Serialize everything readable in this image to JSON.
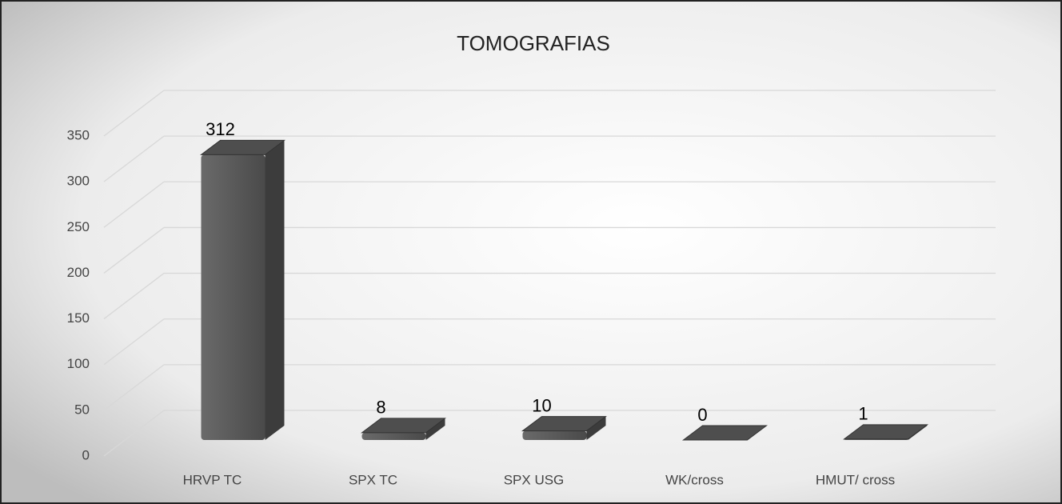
{
  "chart_data": {
    "type": "bar",
    "title": "TOMOGRAFIAS",
    "categories": [
      "HRVP TC",
      "SPX TC",
      "SPX USG",
      "WK/cross",
      "HMUT/ cross"
    ],
    "values": [
      312,
      8,
      10,
      0,
      1
    ],
    "color": "#5a5a5a",
    "ylim": [
      0,
      350
    ],
    "yticks": [
      0,
      50,
      100,
      150,
      200,
      250,
      300,
      350
    ],
    "grid": true
  }
}
